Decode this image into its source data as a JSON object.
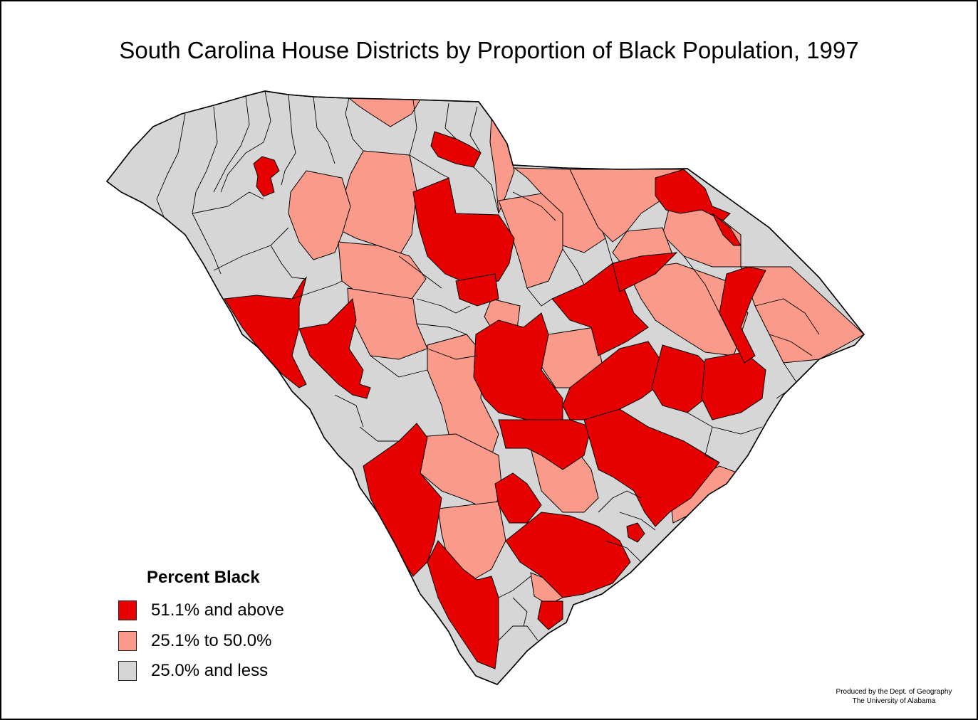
{
  "title": "South Carolina House Districts by Proportion of Black Population, 1997",
  "legend": {
    "title": "Percent Black",
    "items": [
      {
        "label": "51.1% and above",
        "color": "#e60000"
      },
      {
        "label": "25.1% to 50.0%",
        "color": "#fa9a8a"
      },
      {
        "label": "25.0% and less",
        "color": "#d6d6d6"
      }
    ]
  },
  "credit": {
    "line1": "Produced by the Dept. of Geography",
    "line2": "The University of Alabama"
  },
  "colors": {
    "high": "#e60000",
    "mid": "#fa9a8a",
    "low": "#d6d6d6",
    "border": "#000000",
    "background": "#ffffff"
  }
}
